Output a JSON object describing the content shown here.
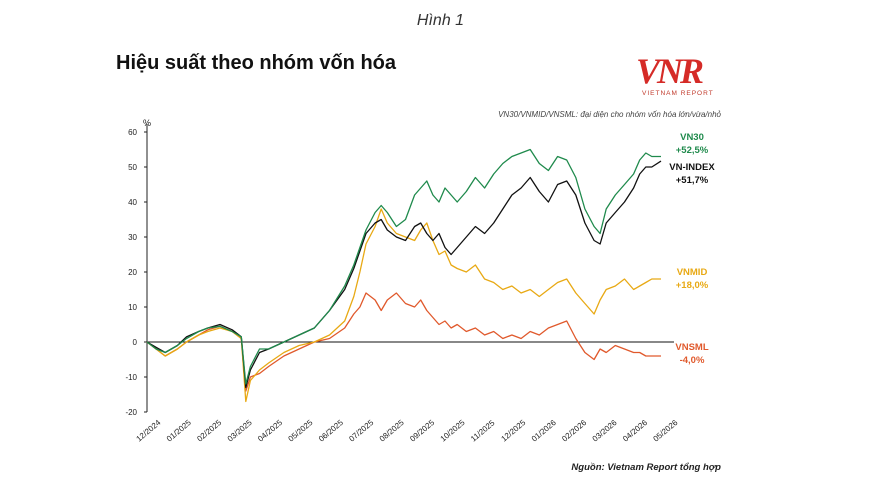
{
  "figure_label": "Hình 1",
  "title": "Hiệu suất theo nhóm vốn hóa",
  "logo": {
    "text": "VNR",
    "subtitle": "VIETNAM REPORT",
    "color": "#d52b27"
  },
  "note": "VN30/VNMID/VNSML: đại diện cho nhóm vốn hóa lớn/vừa/nhỏ",
  "source": "Nguồn: Vietnam Report tổng hợp",
  "chart_data": {
    "type": "line",
    "ylabel": "%",
    "ylim": [
      -20,
      60
    ],
    "yticks": [
      -20,
      -10,
      0,
      10,
      20,
      30,
      40,
      50,
      60
    ],
    "x_tick_labels": [
      "12/2024",
      "01/2025",
      "02/2025",
      "03/2025",
      "04/2025",
      "05/2025",
      "06/2025",
      "07/2025",
      "08/2025",
      "09/2025",
      "10/2025",
      "11/2025",
      "12/2025",
      "01/2026",
      "02/2026",
      "03/2026",
      "04/2026",
      "05/2026"
    ],
    "x_domain": [
      0,
      17
    ],
    "zero_line": true,
    "series": [
      {
        "name": "VN30",
        "change": "+52,5%",
        "color": "#1f8a4c",
        "points": [
          [
            0,
            0
          ],
          [
            0.3,
            -2
          ],
          [
            0.6,
            -3
          ],
          [
            1,
            -1
          ],
          [
            1.3,
            1
          ],
          [
            1.7,
            3
          ],
          [
            2,
            4
          ],
          [
            2.4,
            4.5
          ],
          [
            2.8,
            3
          ],
          [
            3.1,
            1.5
          ],
          [
            3.25,
            -12
          ],
          [
            3.4,
            -7
          ],
          [
            3.7,
            -2
          ],
          [
            4,
            -2
          ],
          [
            4.5,
            0
          ],
          [
            5,
            2
          ],
          [
            5.5,
            4
          ],
          [
            6,
            9
          ],
          [
            6.5,
            16
          ],
          [
            6.8,
            22
          ],
          [
            7,
            27
          ],
          [
            7.2,
            32
          ],
          [
            7.5,
            37
          ],
          [
            7.7,
            39
          ],
          [
            7.9,
            37
          ],
          [
            8.2,
            33
          ],
          [
            8.5,
            35
          ],
          [
            8.8,
            42
          ],
          [
            9,
            44
          ],
          [
            9.2,
            46
          ],
          [
            9.4,
            42
          ],
          [
            9.6,
            40
          ],
          [
            9.8,
            44
          ],
          [
            10,
            42
          ],
          [
            10.2,
            40
          ],
          [
            10.5,
            43
          ],
          [
            10.8,
            47
          ],
          [
            11.1,
            44
          ],
          [
            11.4,
            48
          ],
          [
            11.7,
            51
          ],
          [
            12,
            53
          ],
          [
            12.3,
            54
          ],
          [
            12.6,
            55
          ],
          [
            12.9,
            51
          ],
          [
            13.2,
            49
          ],
          [
            13.5,
            53
          ],
          [
            13.8,
            52
          ],
          [
            14.1,
            47
          ],
          [
            14.4,
            38
          ],
          [
            14.7,
            33
          ],
          [
            14.9,
            31
          ],
          [
            15.1,
            38
          ],
          [
            15.4,
            42
          ],
          [
            15.7,
            45
          ],
          [
            16,
            48
          ],
          [
            16.2,
            52
          ],
          [
            16.4,
            54
          ],
          [
            16.6,
            53
          ],
          [
            16.9,
            53
          ]
        ]
      },
      {
        "name": "VN-INDEX",
        "change": "+51,7%",
        "color": "#111111",
        "points": [
          [
            0,
            0
          ],
          [
            0.3,
            -1.5
          ],
          [
            0.6,
            -3
          ],
          [
            1,
            -1
          ],
          [
            1.3,
            1.5
          ],
          [
            1.7,
            3
          ],
          [
            2,
            4
          ],
          [
            2.4,
            5
          ],
          [
            2.8,
            3.5
          ],
          [
            3.1,
            1.5
          ],
          [
            3.25,
            -13
          ],
          [
            3.4,
            -8
          ],
          [
            3.7,
            -3
          ],
          [
            4,
            -2
          ],
          [
            4.5,
            0
          ],
          [
            5,
            2
          ],
          [
            5.5,
            4
          ],
          [
            6,
            9
          ],
          [
            6.5,
            15
          ],
          [
            6.8,
            21
          ],
          [
            7,
            26
          ],
          [
            7.2,
            31
          ],
          [
            7.5,
            34
          ],
          [
            7.7,
            35
          ],
          [
            7.9,
            32
          ],
          [
            8.2,
            30
          ],
          [
            8.5,
            29
          ],
          [
            8.8,
            33
          ],
          [
            9,
            34
          ],
          [
            9.2,
            31
          ],
          [
            9.4,
            29
          ],
          [
            9.6,
            31
          ],
          [
            9.8,
            27
          ],
          [
            10,
            25
          ],
          [
            10.2,
            27
          ],
          [
            10.5,
            30
          ],
          [
            10.8,
            33
          ],
          [
            11.1,
            31
          ],
          [
            11.4,
            34
          ],
          [
            11.7,
            38
          ],
          [
            12,
            42
          ],
          [
            12.3,
            44
          ],
          [
            12.6,
            47
          ],
          [
            12.9,
            43
          ],
          [
            13.2,
            40
          ],
          [
            13.5,
            45
          ],
          [
            13.8,
            46
          ],
          [
            14.1,
            42
          ],
          [
            14.4,
            34
          ],
          [
            14.7,
            29
          ],
          [
            14.9,
            28
          ],
          [
            15.1,
            34
          ],
          [
            15.4,
            37
          ],
          [
            15.7,
            40
          ],
          [
            16,
            44
          ],
          [
            16.2,
            48
          ],
          [
            16.4,
            50
          ],
          [
            16.6,
            50
          ],
          [
            16.9,
            51.7
          ]
        ]
      },
      {
        "name": "VNMID",
        "change": "+18,0%",
        "color": "#e8a914",
        "points": [
          [
            0,
            0
          ],
          [
            0.3,
            -2
          ],
          [
            0.6,
            -4
          ],
          [
            1,
            -2
          ],
          [
            1.3,
            0
          ],
          [
            1.7,
            2
          ],
          [
            2,
            3
          ],
          [
            2.4,
            4
          ],
          [
            2.8,
            3
          ],
          [
            3.1,
            1
          ],
          [
            3.25,
            -17
          ],
          [
            3.4,
            -11
          ],
          [
            3.7,
            -8
          ],
          [
            4,
            -6
          ],
          [
            4.5,
            -3
          ],
          [
            5,
            -1
          ],
          [
            5.5,
            0
          ],
          [
            6,
            2
          ],
          [
            6.5,
            6
          ],
          [
            6.8,
            13
          ],
          [
            7,
            20
          ],
          [
            7.2,
            28
          ],
          [
            7.5,
            33
          ],
          [
            7.7,
            38
          ],
          [
            7.9,
            34
          ],
          [
            8.2,
            31
          ],
          [
            8.5,
            30
          ],
          [
            8.8,
            29
          ],
          [
            9,
            32
          ],
          [
            9.2,
            34
          ],
          [
            9.4,
            29
          ],
          [
            9.6,
            25
          ],
          [
            9.8,
            26
          ],
          [
            10,
            22
          ],
          [
            10.2,
            21
          ],
          [
            10.5,
            20
          ],
          [
            10.8,
            22
          ],
          [
            11.1,
            18
          ],
          [
            11.4,
            17
          ],
          [
            11.7,
            15
          ],
          [
            12,
            16
          ],
          [
            12.3,
            14
          ],
          [
            12.6,
            15
          ],
          [
            12.9,
            13
          ],
          [
            13.2,
            15
          ],
          [
            13.5,
            17
          ],
          [
            13.8,
            18
          ],
          [
            14.1,
            14
          ],
          [
            14.4,
            11
          ],
          [
            14.7,
            8
          ],
          [
            14.9,
            12
          ],
          [
            15.1,
            15
          ],
          [
            15.4,
            16
          ],
          [
            15.7,
            18
          ],
          [
            16,
            15
          ],
          [
            16.2,
            16
          ],
          [
            16.4,
            17
          ],
          [
            16.6,
            18
          ],
          [
            16.9,
            18
          ]
        ]
      },
      {
        "name": "VNSML",
        "change": "-4,0%",
        "color": "#e0592c",
        "points": [
          [
            0,
            0
          ],
          [
            0.3,
            -2
          ],
          [
            0.6,
            -4
          ],
          [
            1,
            -2
          ],
          [
            1.3,
            0
          ],
          [
            1.7,
            2
          ],
          [
            2,
            3.5
          ],
          [
            2.4,
            4.5
          ],
          [
            2.8,
            3
          ],
          [
            3.1,
            1
          ],
          [
            3.25,
            -14
          ],
          [
            3.4,
            -10
          ],
          [
            3.7,
            -9
          ],
          [
            4,
            -7
          ],
          [
            4.5,
            -4
          ],
          [
            5,
            -2
          ],
          [
            5.5,
            0
          ],
          [
            6,
            1
          ],
          [
            6.5,
            4
          ],
          [
            6.8,
            8
          ],
          [
            7,
            10
          ],
          [
            7.2,
            14
          ],
          [
            7.5,
            12
          ],
          [
            7.7,
            9
          ],
          [
            7.9,
            12
          ],
          [
            8.2,
            14
          ],
          [
            8.5,
            11
          ],
          [
            8.8,
            10
          ],
          [
            9,
            12
          ],
          [
            9.2,
            9
          ],
          [
            9.4,
            7
          ],
          [
            9.6,
            5
          ],
          [
            9.8,
            6
          ],
          [
            10,
            4
          ],
          [
            10.2,
            5
          ],
          [
            10.5,
            3
          ],
          [
            10.8,
            4
          ],
          [
            11.1,
            2
          ],
          [
            11.4,
            3
          ],
          [
            11.7,
            1
          ],
          [
            12,
            2
          ],
          [
            12.3,
            1
          ],
          [
            12.6,
            3
          ],
          [
            12.9,
            2
          ],
          [
            13.2,
            4
          ],
          [
            13.5,
            5
          ],
          [
            13.8,
            6
          ],
          [
            14.1,
            1
          ],
          [
            14.4,
            -3
          ],
          [
            14.7,
            -5
          ],
          [
            14.9,
            -2
          ],
          [
            15.1,
            -3
          ],
          [
            15.4,
            -1
          ],
          [
            15.7,
            -2
          ],
          [
            16,
            -3
          ],
          [
            16.2,
            -3
          ],
          [
            16.4,
            -4
          ],
          [
            16.6,
            -4
          ],
          [
            16.9,
            -4
          ]
        ]
      }
    ]
  }
}
